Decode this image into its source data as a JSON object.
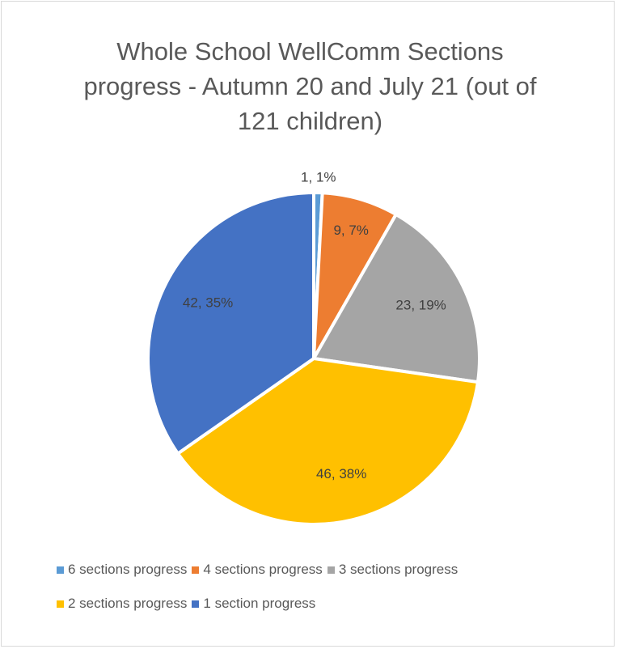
{
  "chart_data": {
    "type": "pie",
    "title": "Whole School WellComm Sections progress - Autumn 20 and July 21  (out of 121 children)",
    "categories": [
      "6 sections progress",
      "4 sections progress",
      "3 sections progress",
      "2 sections progress",
      "1 section progress"
    ],
    "values": [
      1,
      9,
      23,
      46,
      42
    ],
    "value_labels": [
      "1, 1%",
      "9, 7%",
      "23, 19%",
      "46, 38%",
      "42, 35%"
    ],
    "colors": [
      "#5b9bd5",
      "#ed7d31",
      "#a5a5a5",
      "#ffc000",
      "#4472c4"
    ],
    "legend": "bottom"
  }
}
